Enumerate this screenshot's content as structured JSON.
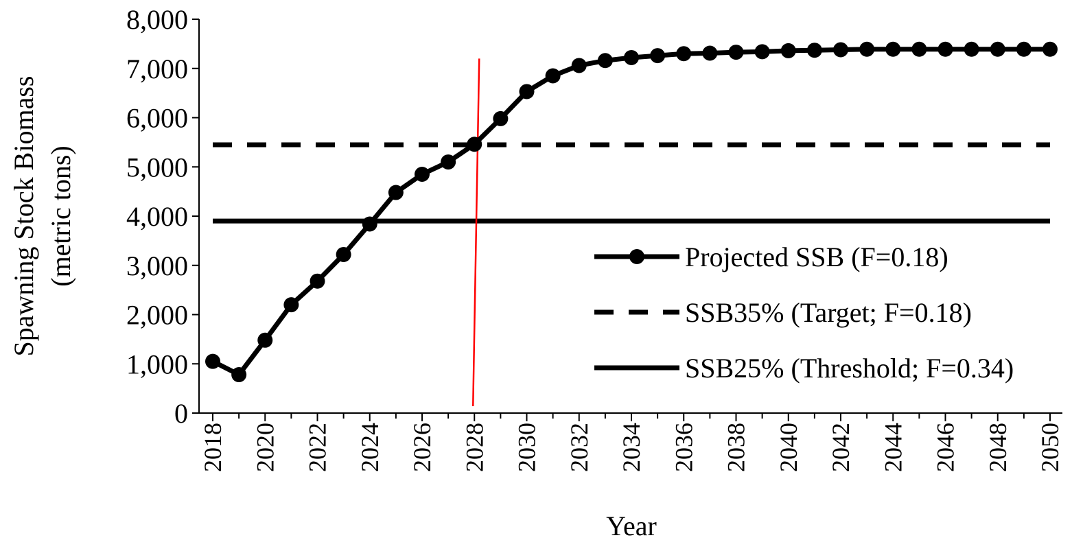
{
  "chart_data": {
    "type": "line",
    "xlabel": "Year",
    "ylabel_line1": "Spawning Stock Biomass",
    "ylabel_line2": "(metric tons)",
    "ylim": [
      0,
      8000
    ],
    "yticks": [
      0,
      1000,
      2000,
      3000,
      4000,
      5000,
      6000,
      7000,
      8000
    ],
    "ytick_labels": [
      "0",
      "1,000",
      "2,000",
      "3,000",
      "4,000",
      "5,000",
      "6,000",
      "7,000",
      "8,000"
    ],
    "xlim": [
      2018,
      2050
    ],
    "xticks": [
      2018,
      2020,
      2022,
      2024,
      2026,
      2028,
      2030,
      2032,
      2034,
      2036,
      2038,
      2040,
      2042,
      2044,
      2046,
      2048,
      2050
    ],
    "xtick_labels": [
      "2018",
      "2020",
      "2022",
      "2024",
      "2026",
      "2028",
      "2030",
      "2032",
      "2034",
      "2036",
      "2038",
      "2040",
      "2042",
      "2044",
      "2046",
      "2048",
      "2050"
    ],
    "grid": false,
    "legend_position": "center-right",
    "series": [
      {
        "name": "Projected SSB (F=0.18)",
        "style": "solid-markers",
        "color": "#000000",
        "x": [
          2018,
          2019,
          2020,
          2021,
          2022,
          2023,
          2024,
          2025,
          2026,
          2027,
          2028,
          2029,
          2030,
          2031,
          2032,
          2033,
          2034,
          2035,
          2036,
          2037,
          2038,
          2039,
          2040,
          2041,
          2042,
          2043,
          2044,
          2045,
          2046,
          2047,
          2048,
          2049,
          2050
        ],
        "y": [
          1050,
          780,
          1480,
          2200,
          2680,
          3220,
          3840,
          4480,
          4850,
          5100,
          5460,
          5980,
          6530,
          6850,
          7060,
          7160,
          7220,
          7260,
          7300,
          7310,
          7330,
          7340,
          7360,
          7370,
          7380,
          7390,
          7390,
          7390,
          7390,
          7390,
          7390,
          7390,
          7390
        ]
      },
      {
        "name": "SSB35% (Target; F=0.18)",
        "style": "dashed",
        "color": "#000000",
        "y_constant": 5450
      },
      {
        "name": "SSB25% (Threshold; F=0.34)",
        "style": "solid",
        "color": "#000000",
        "y_constant": 3900
      }
    ],
    "annotations": [
      {
        "type": "vertical-line",
        "color": "#ff0000",
        "x": 2028,
        "y_from": 0,
        "y_to": 7200
      }
    ]
  }
}
